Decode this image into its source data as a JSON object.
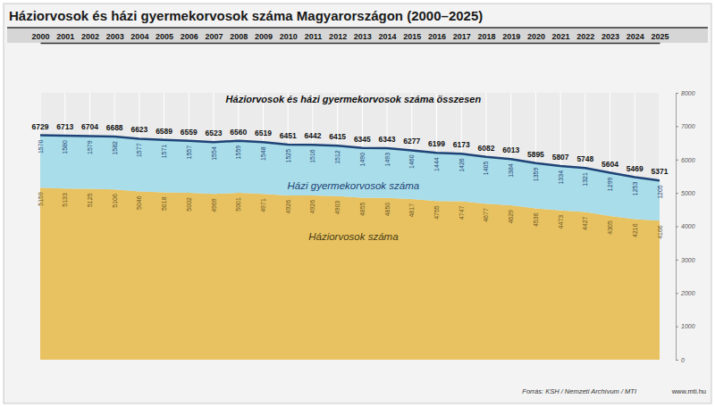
{
  "chart_data": {
    "type": "area",
    "title": "Háziorvosok és házi gyermekorvosok száma Magyarországon (2000–2025)",
    "categories": [
      "2000",
      "2001",
      "2002",
      "2003",
      "2004",
      "2005",
      "2006",
      "2007",
      "2008",
      "2009",
      "2010",
      "2011",
      "2012",
      "2013",
      "2014",
      "2015",
      "2016",
      "2017",
      "2018",
      "2019",
      "2020",
      "2021",
      "2022",
      "2023",
      "2024",
      "2025"
    ],
    "series": [
      {
        "name": "Háziorvosok száma",
        "type": "area",
        "color": "#e8c260",
        "values": [
          5159,
          5133,
          5125,
          5106,
          5046,
          5018,
          5002,
          4969,
          5001,
          4971,
          4926,
          4926,
          4903,
          4855,
          4850,
          4817,
          4755,
          4747,
          4677,
          4629,
          4536,
          4473,
          4427,
          4305,
          4216,
          4166
        ]
      },
      {
        "name": "Házi gyermekorvosok száma",
        "type": "area",
        "color": "#a9dde9",
        "values": [
          1570,
          1580,
          1579,
          1582,
          1577,
          1571,
          1557,
          1554,
          1559,
          1548,
          1525,
          1516,
          1512,
          1490,
          1493,
          1460,
          1444,
          1426,
          1405,
          1384,
          1359,
          1334,
          1321,
          1299,
          1253,
          1205
        ]
      },
      {
        "name": "Háziorvosok és házi gyermekorvosok száma összesen",
        "type": "line",
        "color": "#1e4376",
        "values": [
          6729,
          6713,
          6704,
          6688,
          6623,
          6589,
          6559,
          6523,
          6560,
          6519,
          6451,
          6442,
          6415,
          6345,
          6343,
          6277,
          6199,
          6173,
          6082,
          6013,
          5895,
          5807,
          5748,
          5604,
          5469,
          5371
        ]
      }
    ],
    "ylim": [
      0,
      8000
    ],
    "yticks": [
      0,
      1000,
      2000,
      3000,
      4000,
      5000,
      6000,
      7000,
      8000
    ],
    "stacked": true,
    "data_labels": true,
    "grid": true,
    "source": "Forrás: KSH / Nemzeti Archívum / MTI",
    "credit": "www.mti.hu"
  }
}
